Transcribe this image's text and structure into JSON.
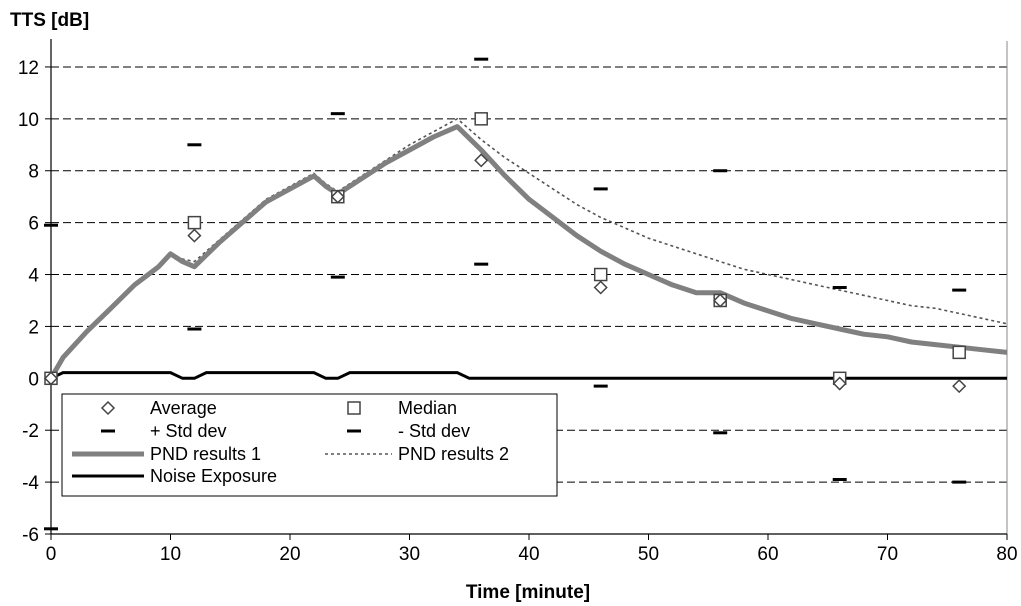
{
  "chart_data": {
    "type": "line",
    "ylabel": "TTS [dB]",
    "xlabel": "Time [minute]",
    "xlim": [
      0,
      80
    ],
    "ylim": [
      -6,
      13
    ],
    "xticks": [
      0,
      10,
      20,
      30,
      40,
      50,
      60,
      70,
      80
    ],
    "yticks": [
      -6,
      -4,
      -2,
      0,
      2,
      4,
      6,
      8,
      10,
      12
    ],
    "grid": "horizontal dashed",
    "legend_position": "lower-left",
    "colors": {
      "pnd1": "#808080",
      "pnd2": "#555555",
      "markers": "#444444",
      "noise": "#000000"
    },
    "series": [
      {
        "name": "Average",
        "style": "diamond",
        "x": [
          0,
          12,
          24,
          36,
          46,
          56,
          66,
          76
        ],
        "y": [
          0.0,
          5.5,
          7.0,
          8.4,
          3.5,
          3.0,
          -0.2,
          -0.3
        ]
      },
      {
        "name": "Median",
        "style": "square",
        "x": [
          0,
          12,
          24,
          36,
          46,
          56,
          66,
          76
        ],
        "y": [
          0.0,
          6.0,
          7.0,
          10.0,
          4.0,
          3.0,
          0.0,
          1.0
        ]
      },
      {
        "name": "+ Std dev",
        "style": "dash",
        "x": [
          0,
          12,
          24,
          36,
          46,
          56,
          66,
          76
        ],
        "y": [
          5.9,
          9.0,
          10.2,
          12.3,
          7.3,
          8.0,
          3.5,
          3.4
        ]
      },
      {
        "name": "- Std dev",
        "style": "dash",
        "x": [
          0,
          12,
          24,
          36,
          46,
          56,
          66,
          76
        ],
        "y": [
          -5.8,
          1.9,
          3.9,
          4.4,
          -0.3,
          -2.1,
          -3.9,
          -4.0
        ]
      },
      {
        "name": "PND results 1",
        "style": "thick-gray",
        "x": [
          0,
          1,
          3,
          5,
          7,
          9,
          10,
          11,
          12,
          14,
          16,
          18,
          20,
          22,
          23,
          24,
          26,
          28,
          30,
          32,
          34,
          36,
          38,
          40,
          42,
          44,
          46,
          48,
          50,
          52,
          54,
          56,
          58,
          60,
          62,
          64,
          66,
          68,
          70,
          72,
          74,
          76,
          78,
          80
        ],
        "y": [
          0,
          0.8,
          1.8,
          2.7,
          3.6,
          4.3,
          4.8,
          4.5,
          4.3,
          5.2,
          6.0,
          6.8,
          7.3,
          7.8,
          7.4,
          7.1,
          7.7,
          8.3,
          8.8,
          9.3,
          9.7,
          8.8,
          7.8,
          6.9,
          6.2,
          5.5,
          4.9,
          4.4,
          4.0,
          3.6,
          3.3,
          3.3,
          2.9,
          2.6,
          2.3,
          2.1,
          1.9,
          1.7,
          1.6,
          1.4,
          1.3,
          1.2,
          1.1,
          1.0
        ]
      },
      {
        "name": "PND results 2",
        "style": "dotted",
        "x": [
          0,
          1,
          3,
          5,
          7,
          9,
          10,
          11,
          12,
          14,
          16,
          18,
          20,
          22,
          23,
          24,
          26,
          28,
          30,
          32,
          34,
          36,
          38,
          40,
          42,
          44,
          46,
          48,
          50,
          52,
          54,
          56,
          58,
          60,
          62,
          64,
          66,
          68,
          70,
          72,
          74,
          76,
          78,
          80
        ],
        "y": [
          0,
          0.8,
          1.8,
          2.7,
          3.6,
          4.3,
          4.8,
          4.6,
          4.5,
          5.3,
          6.1,
          6.9,
          7.4,
          7.9,
          7.5,
          7.2,
          7.8,
          8.4,
          9.0,
          9.5,
          10.0,
          9.2,
          8.5,
          7.9,
          7.3,
          6.7,
          6.2,
          5.8,
          5.4,
          5.1,
          4.8,
          4.5,
          4.2,
          4.0,
          3.8,
          3.6,
          3.4,
          3.2,
          3.0,
          2.8,
          2.7,
          2.5,
          2.3,
          2.1
        ]
      },
      {
        "name": "Noise Exposure",
        "style": "solid-black",
        "x": [
          0,
          1,
          10,
          11,
          12,
          13,
          22,
          23,
          24,
          25,
          34,
          35,
          80
        ],
        "y": [
          0,
          0.22,
          0.22,
          0,
          0,
          0.22,
          0.22,
          0,
          0,
          0.22,
          0.22,
          0,
          0
        ]
      }
    ]
  }
}
